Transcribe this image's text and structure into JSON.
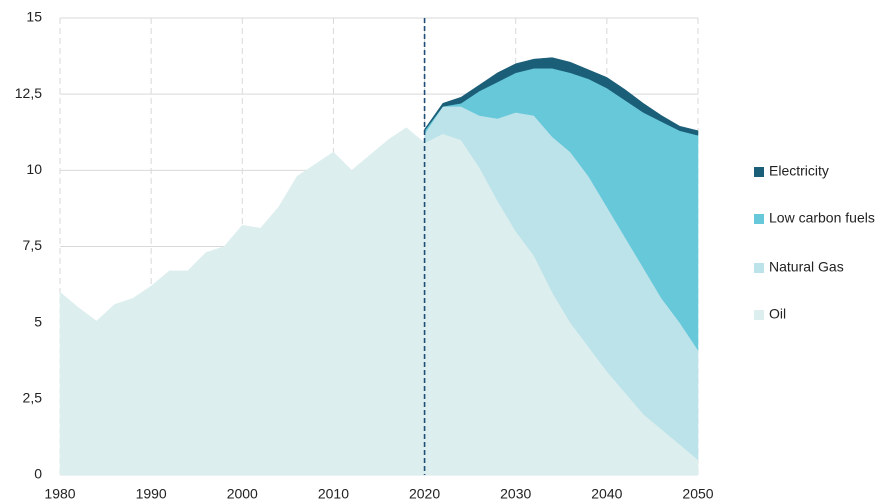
{
  "chart_data": {
    "type": "stacked_area",
    "x": [
      1980,
      1982,
      1984,
      1986,
      1988,
      1990,
      1992,
      1994,
      1996,
      1998,
      2000,
      2002,
      2004,
      2006,
      2008,
      2010,
      2012,
      2014,
      2016,
      2018,
      2020,
      2022,
      2024,
      2026,
      2028,
      2030,
      2032,
      2034,
      2036,
      2038,
      2040,
      2042,
      2044,
      2046,
      2048,
      2050
    ],
    "xlim": [
      1980,
      2050
    ],
    "xticks": [
      1980,
      1990,
      2000,
      2010,
      2020,
      2030,
      2040,
      2050
    ],
    "ylim": [
      0,
      15
    ],
    "yticks": [
      0,
      {
        "value": 2.5,
        "label": "2,5"
      },
      5,
      {
        "value": 7.5,
        "label": "7,5"
      },
      10,
      {
        "value": 12.5,
        "label": "12,5"
      },
      15
    ],
    "grid": true,
    "legend": "right",
    "reference_line_x": 2020,
    "reference_line_color": "#1f4e79",
    "series": [
      {
        "name": "Oil",
        "color": "#dceeee",
        "values": [
          6.0,
          5.5,
          5.05,
          5.6,
          5.8,
          6.2,
          6.7,
          6.7,
          7.3,
          7.5,
          8.2,
          8.1,
          8.8,
          9.8,
          10.2,
          10.6,
          10.0,
          10.5,
          11.0,
          11.4,
          10.9,
          11.2,
          11.0,
          10.1,
          9.0,
          8.0,
          7.2,
          6.0,
          5.0,
          4.2,
          3.4,
          2.7,
          2.0,
          1.5,
          1.0,
          0.5
        ]
      },
      {
        "name": "Natural Gas",
        "color": "#bde3ea",
        "values": [
          null,
          null,
          null,
          null,
          null,
          null,
          null,
          null,
          null,
          null,
          null,
          null,
          null,
          null,
          null,
          null,
          null,
          null,
          null,
          null,
          0.3,
          0.9,
          1.1,
          1.7,
          2.7,
          3.9,
          4.6,
          5.1,
          5.6,
          5.6,
          5.4,
          5.1,
          4.8,
          4.3,
          4.0,
          3.6
        ]
      },
      {
        "name": "Low carbon fuels",
        "color": "#66c8d9",
        "values": [
          null,
          null,
          null,
          null,
          null,
          null,
          null,
          null,
          null,
          null,
          null,
          null,
          null,
          null,
          null,
          null,
          null,
          null,
          null,
          null,
          0.1,
          0.0,
          0.1,
          0.8,
          1.2,
          1.3,
          1.55,
          2.25,
          2.6,
          3.2,
          3.9,
          4.5,
          5.1,
          5.8,
          6.3,
          7.05
        ]
      },
      {
        "name": "Electricity",
        "color": "#1a5e78",
        "values": [
          null,
          null,
          null,
          null,
          null,
          null,
          null,
          null,
          null,
          null,
          null,
          null,
          null,
          null,
          null,
          null,
          null,
          null,
          null,
          null,
          0.05,
          0.1,
          0.2,
          0.2,
          0.3,
          0.3,
          0.3,
          0.35,
          0.35,
          0.3,
          0.35,
          0.35,
          0.3,
          0.2,
          0.15,
          0.15
        ]
      }
    ]
  }
}
